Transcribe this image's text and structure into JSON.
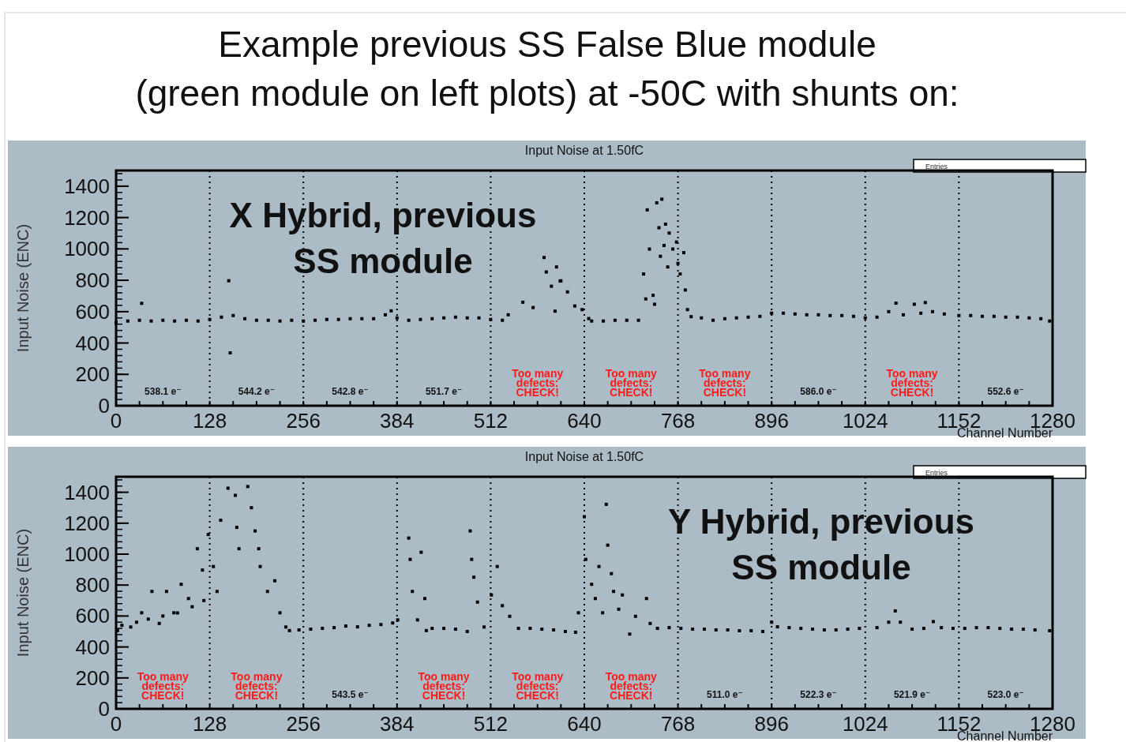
{
  "chart_data": [
    {
      "type": "scatter",
      "title": "Input Noise at 1.50fC",
      "subtitle": "X Hybrid, previous\nSS module",
      "xlabel": "Channel Number",
      "ylabel": "Input Noise (ENC)",
      "annotations": [
        "Example previous SS False Blue module\n(green module on left plots) at -50C with shunts on:",
        "Entries",
        "538.1 e⁻",
        "544.2 e⁻",
        "542.8 e⁻",
        "551.7 e⁻",
        "Too many\ndefects:\nCHECK!",
        "Too many\ndefects:\nCHECK!",
        "Too many\ndefects:\nCHECK!",
        "586.0 e⁻",
        "Too many\ndefects:\nCHECK!",
        "552.6 e⁻"
      ],
      "xlim": [
        0,
        1280
      ],
      "xticks": [
        0,
        128,
        256,
        384,
        512,
        640,
        768,
        896,
        1024,
        1152,
        1280
      ],
      "ylim": [
        0,
        1500
      ],
      "yticks": [
        0,
        200,
        400,
        600,
        800,
        1000,
        1200,
        1400
      ],
      "marker": "square",
      "ref_lines": [
        {
          "axis": "x",
          "value": 128,
          "line_style": "dotted"
        },
        {
          "axis": "x",
          "value": 256,
          "line_style": "dotted"
        },
        {
          "axis": "x",
          "value": 384,
          "line_style": "dotted"
        },
        {
          "axis": "x",
          "value": 512,
          "line_style": "dotted"
        },
        {
          "axis": "x",
          "value": 640,
          "line_style": "dotted"
        },
        {
          "axis": "x",
          "value": 768,
          "line_style": "dotted"
        },
        {
          "axis": "x",
          "value": 896,
          "line_style": "dotted"
        },
        {
          "axis": "x",
          "value": 1024,
          "line_style": "dotted"
        },
        {
          "axis": "x",
          "value": 1152,
          "line_style": "dotted"
        }
      ],
      "series": [
        {
          "color": "#000000",
          "x": [
            0,
            16,
            32,
            48,
            64,
            80,
            96,
            112,
            128,
            144,
            160,
            176,
            192,
            208,
            224,
            240,
            256,
            272,
            288,
            304,
            320,
            336,
            352,
            368,
            376,
            384,
            400,
            416,
            432,
            448,
            464,
            480,
            496,
            512,
            528,
            35,
            154,
            156,
            536,
            556,
            570,
            585,
            588,
            595,
            600,
            602,
            607,
            608,
            617,
            627,
            637,
            646,
            650,
            666,
            682,
            698,
            714,
            721,
            724,
            726,
            729,
            734,
            736,
            739,
            742,
            744,
            746,
            749,
            751,
            754,
            756,
            761,
            766,
            768,
            771,
            776,
            778,
            781,
            786,
            800,
            816,
            832,
            848,
            864,
            880,
            896,
            912,
            928,
            944,
            960,
            976,
            992,
            1008,
            1024,
            1040,
            1056,
            1066,
            1076,
            1091,
            1100,
            1106,
            1116,
            1132,
            1152,
            1168,
            1184,
            1200,
            1216,
            1232,
            1248,
            1264,
            1276
          ],
          "values": [
            530,
            540,
            545,
            540,
            545,
            540,
            545,
            540,
            550,
            565,
            575,
            555,
            545,
            545,
            540,
            545,
            540,
            545,
            550,
            550,
            555,
            555,
            555,
            580,
            605,
            560,
            545,
            550,
            555,
            560,
            565,
            560,
            560,
            550,
            545,
            653,
            797,
            337,
            580,
            660,
            626,
            945,
            853,
            762,
            603,
            885,
            795,
            797,
            726,
            636,
            613,
            556,
            540,
            540,
            545,
            545,
            545,
            840,
            681,
            1249,
            999,
            704,
            647,
            1294,
            1135,
            953,
            1317,
            1022,
            1158,
            885,
            1101,
            999,
            1044,
            908,
            840,
            976,
            738,
            613,
            568,
            560,
            545,
            555,
            560,
            565,
            570,
            590,
            590,
            585,
            580,
            580,
            575,
            575,
            570,
            560,
            565,
            600,
            654,
            580,
            647,
            590,
            658,
            600,
            585,
            575,
            575,
            570,
            570,
            565,
            565,
            560,
            555,
            540
          ]
        }
      ]
    },
    {
      "type": "scatter",
      "title": "Input Noise at 1.50fC",
      "subtitle": "Y Hybrid, previous\nSS module",
      "xlabel": "Channel Number",
      "ylabel": "Input Noise (ENC)",
      "annotations": [
        "Entries",
        "Too many\ndefects:\nCHECK!",
        "Too many\ndefects:\nCHECK!",
        "543.5 e⁻",
        "Too many\ndefects:\nCHECK!",
        "Too many\ndefects:\nCHECK!",
        "Too many\ndefects:\nCHECK!",
        "511.0 e⁻",
        "522.3 e⁻",
        "521.9 e⁻",
        "523.0 e⁻"
      ],
      "xlim": [
        0,
        1280
      ],
      "xticks": [
        0,
        128,
        256,
        384,
        512,
        640,
        768,
        896,
        1024,
        1152,
        1280
      ],
      "ylim": [
        0,
        1500
      ],
      "yticks": [
        0,
        200,
        400,
        600,
        800,
        1000,
        1200,
        1400
      ],
      "marker": "square",
      "ref_lines": [
        {
          "axis": "x",
          "value": 128,
          "line_style": "dotted"
        },
        {
          "axis": "x",
          "value": 256,
          "line_style": "dotted"
        },
        {
          "axis": "x",
          "value": 384,
          "line_style": "dotted"
        },
        {
          "axis": "x",
          "value": 512,
          "line_style": "dotted"
        },
        {
          "axis": "x",
          "value": 640,
          "line_style": "dotted"
        },
        {
          "axis": "x",
          "value": 768,
          "line_style": "dotted"
        },
        {
          "axis": "x",
          "value": 896,
          "line_style": "dotted"
        },
        {
          "axis": "x",
          "value": 1024,
          "line_style": "dotted"
        },
        {
          "axis": "x",
          "value": 1152,
          "line_style": "dotted"
        }
      ],
      "series": [
        {
          "color": "#000000",
          "x": [
            2,
            8,
            20,
            28,
            35,
            44,
            49,
            59,
            64,
            69,
            79,
            84,
            89,
            99,
            104,
            111,
            118,
            120,
            126,
            133,
            138,
            143,
            153,
            163,
            165,
            168,
            180,
            185,
            190,
            195,
            197,
            207,
            217,
            224,
            232,
            237,
            250,
            266,
            282,
            298,
            314,
            330,
            346,
            362,
            378,
            385,
            400,
            402,
            405,
            412,
            417,
            422,
            424,
            432,
            448,
            464,
            480,
            484,
            486,
            489,
            494,
            503,
            513,
            521,
            528,
            538,
            550,
            566,
            582,
            598,
            614,
            628,
            632,
            640,
            642,
            650,
            655,
            660,
            665,
            670,
            672,
            677,
            680,
            687,
            692,
            702,
            710,
            725,
            730,
            740,
            756,
            772,
            788,
            804,
            820,
            836,
            852,
            868,
            884,
            896,
            904,
            920,
            936,
            952,
            968,
            984,
            1000,
            1016,
            1040,
            1056,
            1065,
            1072,
            1088,
            1104,
            1117,
            1128,
            1144,
            1160,
            1176,
            1192,
            1208,
            1224,
            1240,
            1256,
            1276
          ],
          "values": [
            506,
            540,
            529,
            560,
            621,
            580,
            759,
            552,
            600,
            759,
            621,
            620,
            805,
            713,
            660,
            1035,
            897,
            700,
            1127,
            920,
            759,
            1219,
            1426,
            1380,
            1173,
            1035,
            1437,
            1300,
            1150,
            1035,
            920,
            759,
            828,
            621,
            529,
            506,
            510,
            515,
            520,
            525,
            535,
            530,
            540,
            545,
            555,
            575,
            1104,
            966,
            759,
            575,
            1012,
            713,
            506,
            520,
            520,
            515,
            500,
            1150,
            966,
            851,
            690,
            529,
            736,
            920,
            667,
            598,
            520,
            520,
            515,
            510,
            500,
            495,
            621,
            1242,
            966,
            805,
            713,
            920,
            621,
            1322,
            1058,
            874,
            759,
            644,
            736,
            483,
            598,
            713,
            552,
            520,
            525,
            520,
            515,
            515,
            510,
            510,
            505,
            505,
            500,
            560,
            530,
            525,
            520,
            515,
            510,
            510,
            515,
            520,
            525,
            560,
            633,
            560,
            515,
            520,
            564,
            525,
            520,
            520,
            525,
            525,
            520,
            515,
            515,
            510,
            505
          ]
        }
      ]
    }
  ]
}
